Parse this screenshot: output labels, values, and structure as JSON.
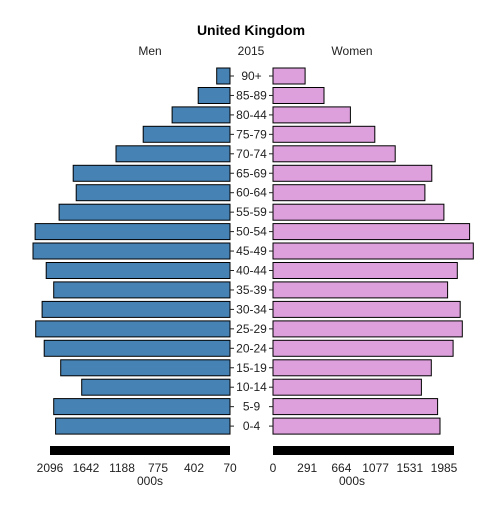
{
  "chart_data": {
    "type": "bar",
    "title": "United Kingdom",
    "year": "2015",
    "units": "000s",
    "ages": [
      "0-4",
      "5-9",
      "10-14",
      "15-19",
      "20-24",
      "25-29",
      "30-34",
      "35-39",
      "40-44",
      "45-49",
      "50-54",
      "55-59",
      "60-64",
      "65-69",
      "70-74",
      "75-79",
      "80-44",
      "85-89",
      "90+"
    ],
    "series": [
      {
        "name": "Men",
        "color": "#4682b4",
        "values": [
          2006,
          2027,
          1705,
          1947,
          2137,
          2234,
          2161,
          2027,
          2114,
          2265,
          2241,
          1965,
          1769,
          1803,
          1311,
          998,
          666,
          366,
          153
        ]
      },
      {
        "name": "Women",
        "color": "#dda0dd",
        "values": [
          1920,
          1893,
          1707,
          1821,
          2071,
          2177,
          2153,
          2008,
          2120,
          2303,
          2261,
          1965,
          1747,
          1826,
          1405,
          1171,
          890,
          586,
          369
        ]
      }
    ],
    "left_axis": {
      "label": "Men",
      "ticks": [
        "2096",
        "1642",
        "1188",
        "775",
        "402",
        "70"
      ]
    },
    "right_axis": {
      "label": "Women",
      "ticks": [
        "0",
        "291",
        "664",
        "1077",
        "1531",
        "1985"
      ]
    },
    "xmax": 2300
  }
}
